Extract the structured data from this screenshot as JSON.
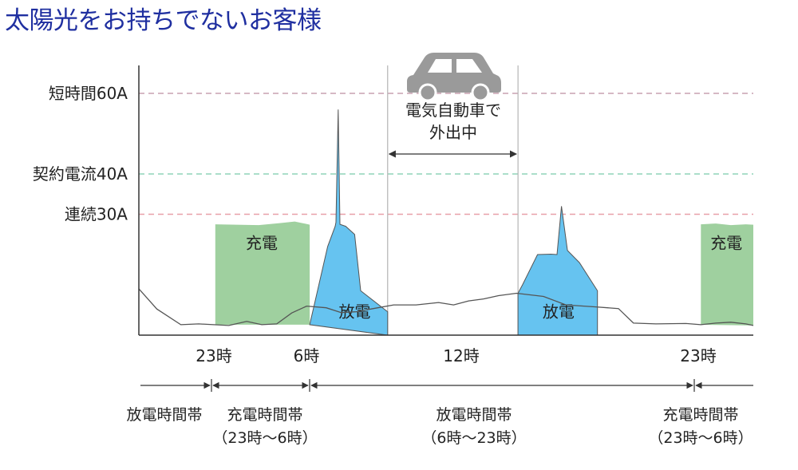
{
  "title": "太陽光をお持ちでないお客様",
  "chart_data": {
    "type": "area",
    "thresholds": [
      {
        "label": "短時間60A",
        "value": 60,
        "color": "#c9a0b0"
      },
      {
        "label": "契約電流40A",
        "value": 40,
        "color": "#8fd3b8"
      },
      {
        "label": "連続30A",
        "value": 30,
        "color": "#e8a0a8"
      }
    ],
    "ylim": [
      0,
      66
    ],
    "x_ticks": [
      "23時",
      "6時",
      "12時",
      "23時"
    ],
    "base_line": [
      [
        0,
        11.5
      ],
      [
        1.2,
        6.5
      ],
      [
        2.8,
        2.6
      ],
      [
        4.0,
        2.8
      ],
      [
        6.0,
        2.4
      ],
      [
        7.2,
        3.4
      ],
      [
        8.2,
        2.6
      ],
      [
        9.2,
        2.8
      ],
      [
        10.2,
        5.5
      ],
      [
        11.2,
        7.2
      ],
      [
        12.5,
        6.8
      ],
      [
        13.5,
        5.6
      ],
      [
        14.5,
        5.8
      ],
      [
        15.5,
        6.5
      ],
      [
        17.0,
        7.5
      ],
      [
        18.5,
        7.5
      ],
      [
        20.0,
        8.1
      ],
      [
        21.0,
        7.5
      ],
      [
        22.0,
        8.5
      ],
      [
        23.0,
        9.0
      ],
      [
        24.0,
        9.8
      ],
      [
        25.2,
        10.4
      ],
      [
        27.0,
        9.6
      ],
      [
        28.5,
        7.5
      ],
      [
        30.5,
        7.0
      ],
      [
        32.0,
        6.6
      ],
      [
        33.0,
        3.0
      ],
      [
        34.5,
        2.8
      ],
      [
        36.5,
        2.9
      ],
      [
        37.5,
        2.6
      ],
      [
        38.5,
        3.0
      ],
      [
        39.5,
        3.2
      ],
      [
        40.5,
        2.8
      ],
      [
        41.0,
        2.4
      ]
    ],
    "series": [
      {
        "name": "充電",
        "color": "#9fd09f",
        "points": [
          [
            5.1,
            2.6
          ],
          [
            5.1,
            27.5
          ],
          [
            8.0,
            27.3
          ],
          [
            9.4,
            27.8
          ],
          [
            10.4,
            28.2
          ],
          [
            11.3,
            27.5
          ],
          [
            11.4,
            27.4
          ],
          [
            11.4,
            2.6
          ]
        ]
      },
      {
        "name": "放電",
        "color": "#66c3f0",
        "points": [
          [
            11.4,
            2.6
          ],
          [
            12.6,
            22.0
          ],
          [
            13.1,
            27.0
          ],
          [
            13.15,
            28.0
          ],
          [
            13.2,
            37.0
          ],
          [
            13.3,
            56.0
          ],
          [
            13.42,
            27.5
          ],
          [
            13.8,
            27.0
          ],
          [
            14.4,
            25.0
          ],
          [
            14.8,
            11.0
          ],
          [
            16.6,
            5.8
          ],
          [
            16.6,
            0
          ]
        ]
      },
      {
        "name": "放電",
        "color": "#66c3f0",
        "points": [
          [
            25.3,
            0
          ],
          [
            25.3,
            10.4
          ],
          [
            25.6,
            12.5
          ],
          [
            26.6,
            20.0
          ],
          [
            27.5,
            20.1
          ],
          [
            27.9,
            20.0
          ],
          [
            28.2,
            32.0
          ],
          [
            28.6,
            21.0
          ],
          [
            29.4,
            18.0
          ],
          [
            30.6,
            11.0
          ],
          [
            30.6,
            0
          ]
        ]
      },
      {
        "name": "充電",
        "color": "#9fd09f",
        "points": [
          [
            37.5,
            2.6
          ],
          [
            37.5,
            27.5
          ],
          [
            38.5,
            27.7
          ],
          [
            39.5,
            27.3
          ],
          [
            40.5,
            27.5
          ],
          [
            41.0,
            27.4
          ],
          [
            41.0,
            2.4
          ]
        ]
      }
    ],
    "annotations": {
      "car_icon": "car-icon",
      "trip_label_lines": [
        "電気自動車で",
        "外出中"
      ]
    },
    "time_bands": [
      {
        "lines": [
          "放電時間帯"
        ]
      },
      {
        "lines": [
          "充電時間帯",
          "（23時〜6時）"
        ]
      },
      {
        "lines": [
          "放電時間帯",
          "（6時〜23時）"
        ]
      },
      {
        "lines": [
          "充電時間帯",
          "（23時〜6時）"
        ]
      }
    ]
  }
}
